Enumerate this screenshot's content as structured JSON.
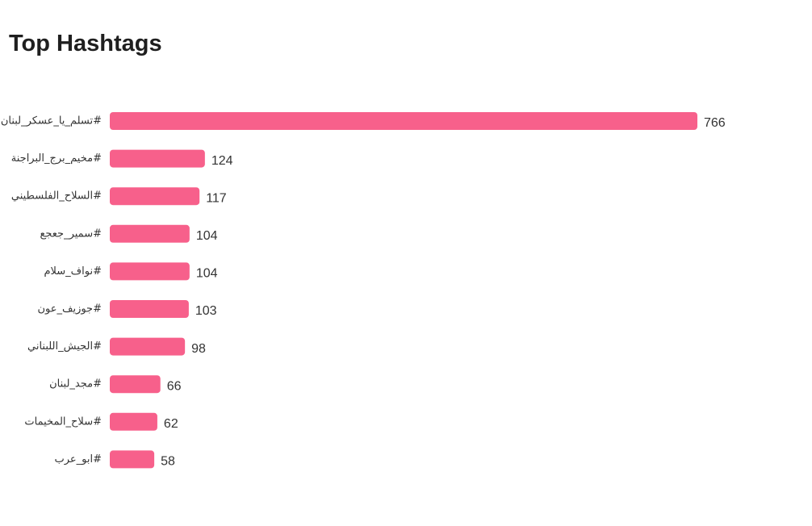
{
  "chart_data": {
    "type": "bar",
    "orientation": "horizontal",
    "title": "Top Hashtags",
    "categories": [
      "تسلم_يا_عسكر_لبنان#",
      "مخيم_برج_البراجنة#",
      "السلاح_الفلسطيني#",
      "سمير_جعجع#",
      "نواف_سلام#",
      "جوزيف_عون#",
      "الجيش_اللبناني#",
      "مجد_لبنان#",
      "سلاح_المخيمات#",
      "ابو_عرب#"
    ],
    "values": [
      766,
      124,
      117,
      104,
      104,
      103,
      98,
      66,
      62,
      58
    ],
    "xlim": [
      0,
      766
    ],
    "grid": false,
    "legend": "none",
    "data_labels": true
  },
  "colors": {
    "bar": "#f7608b",
    "text": "#333333",
    "title": "#1f1f1f"
  }
}
